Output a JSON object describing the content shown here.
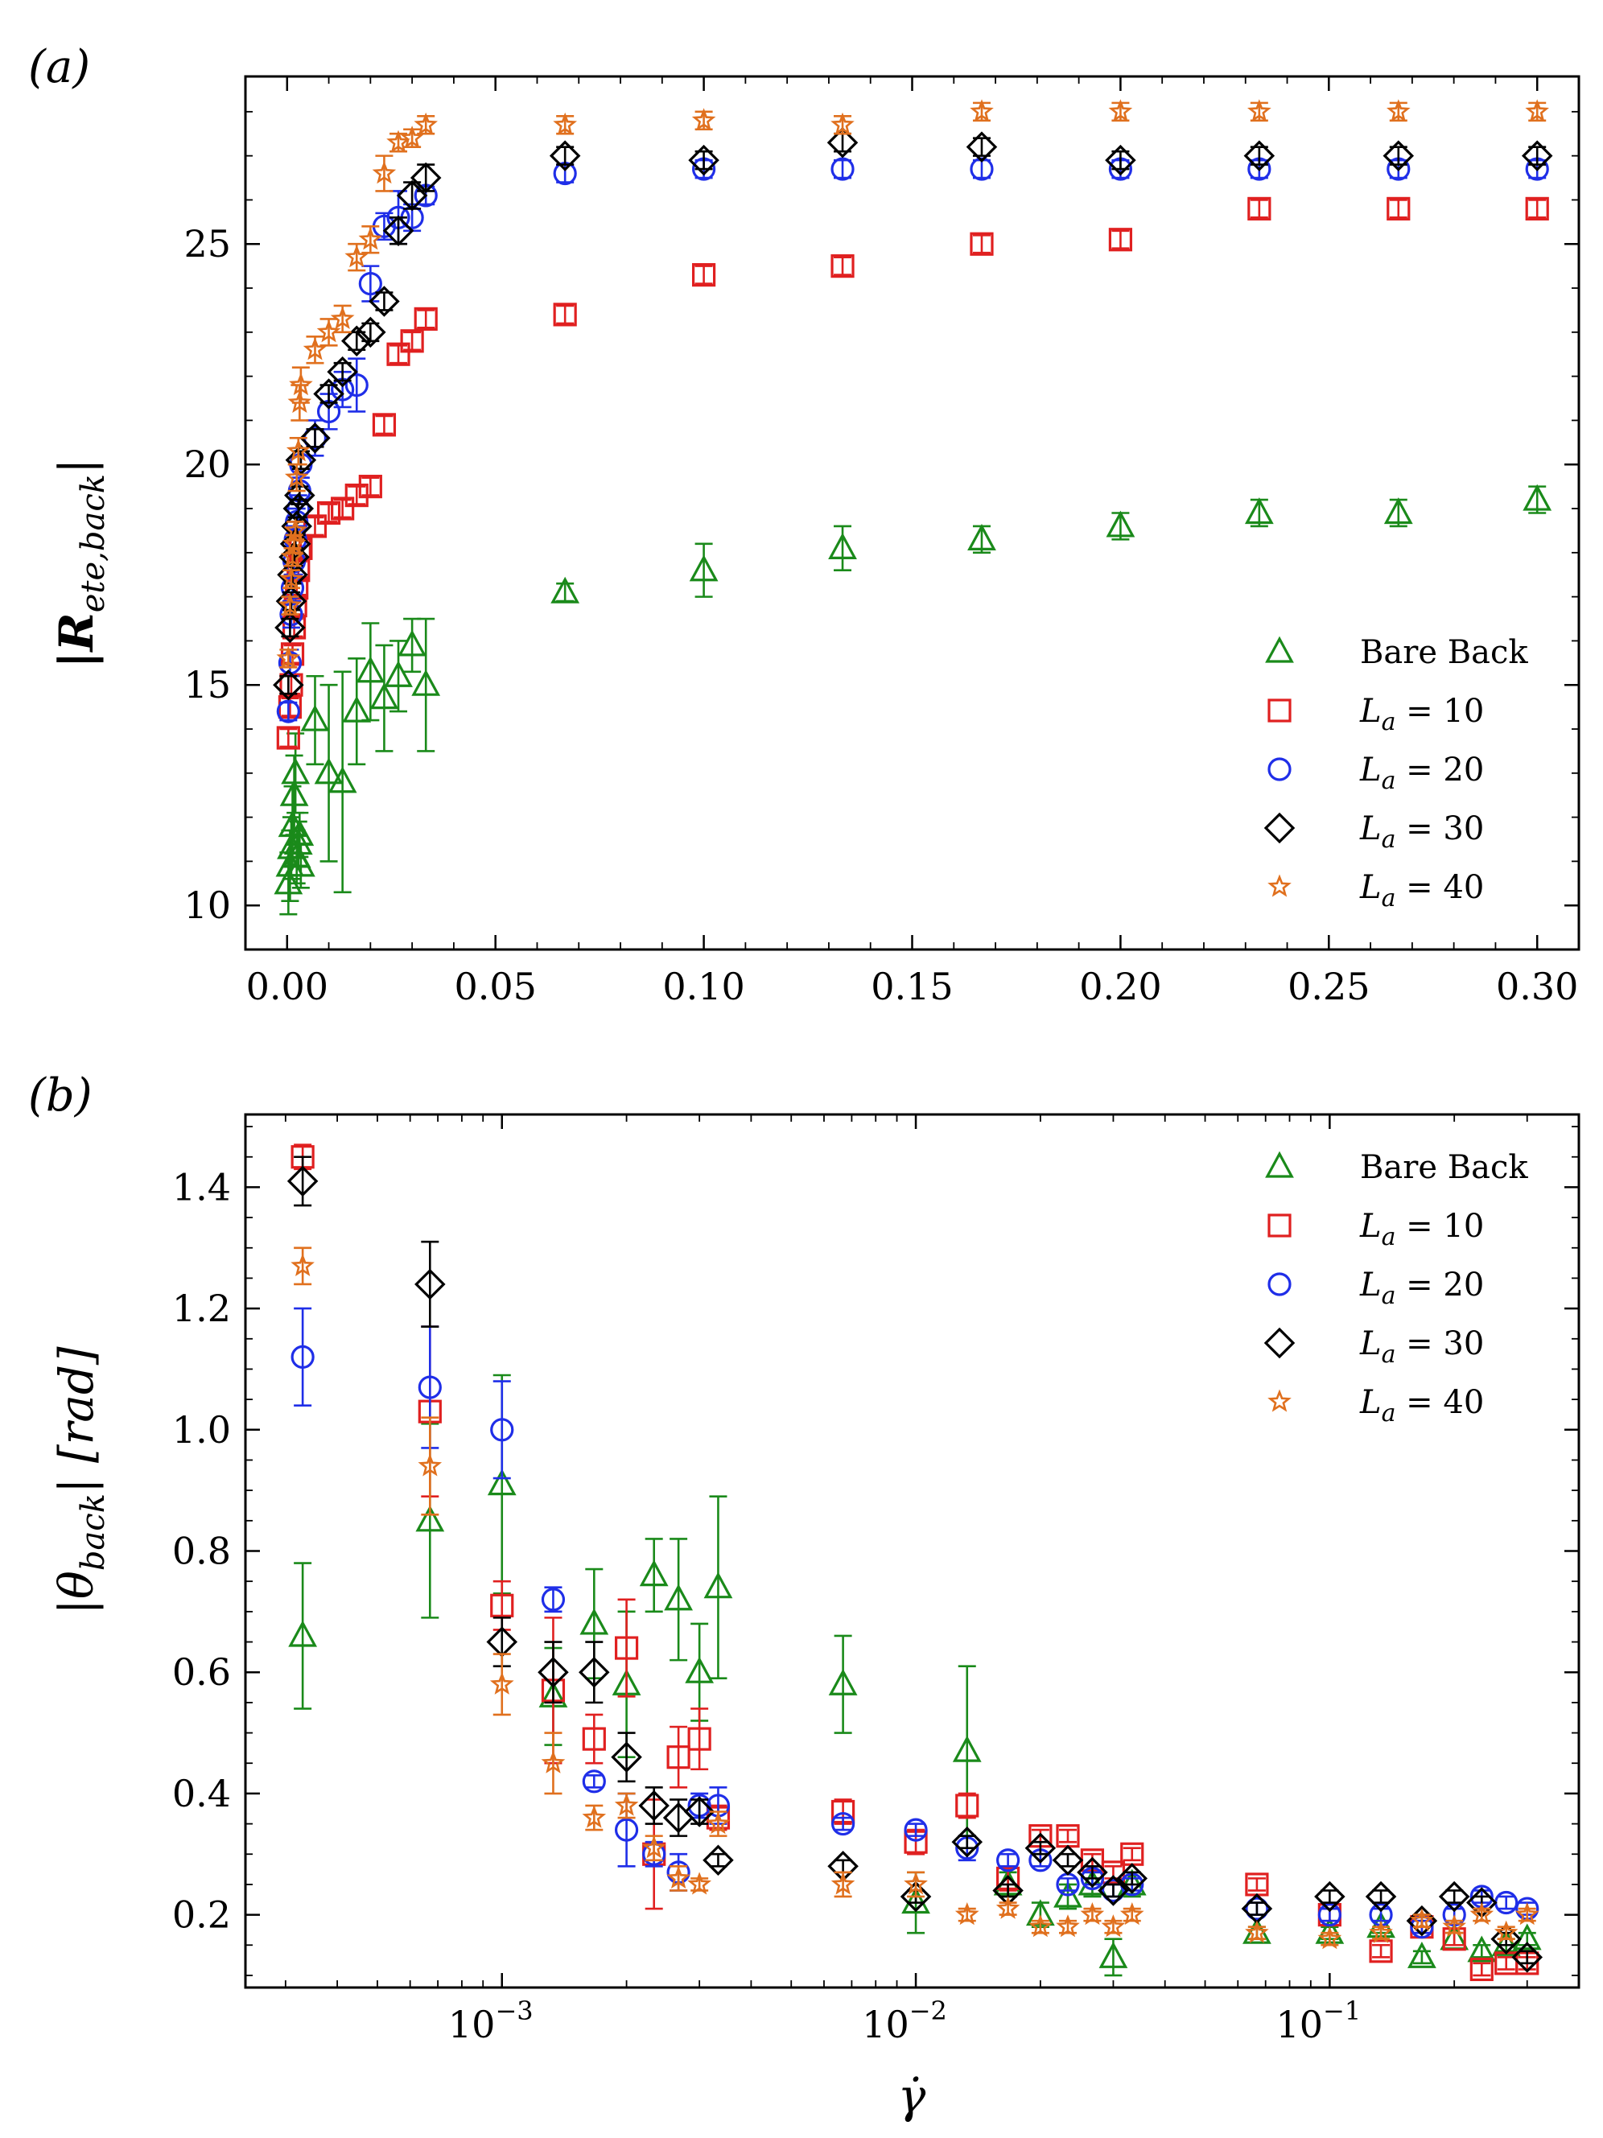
{
  "figure": {
    "colors": {
      "bare": "#1a8a1a",
      "la10": "#e02020",
      "la20": "#1f2ee8",
      "la30": "#000000",
      "la40": "#e0701e"
    }
  },
  "chart_data": [
    {
      "panel_label": "(a)",
      "type": "scatter",
      "xlabel": "",
      "ylabel": "|R_ete,back|",
      "ylabel_main": "|R",
      "ylabel_sub": "ete,back",
      "ylabel_close": "|",
      "xscale": "linear",
      "xlim": [
        -0.01,
        0.31
      ],
      "ylim": [
        9.0,
        28.8
      ],
      "xticks": [
        0.0,
        0.05,
        0.1,
        0.15,
        0.2,
        0.25,
        0.3
      ],
      "xtick_labels": [
        "0.00",
        "0.05",
        "0.10",
        "0.15",
        "0.20",
        "0.25",
        "0.30"
      ],
      "yticks": [
        10,
        15,
        20,
        25
      ],
      "ytick_labels": [
        "10",
        "15",
        "20",
        "25"
      ],
      "legend_position": "lower-right",
      "series": [
        {
          "key": "bare",
          "name": "Bare Back",
          "marker": "triangle",
          "x": [
            0.0003,
            0.0007,
            0.001,
            0.0013,
            0.0017,
            0.002,
            0.0023,
            0.0027,
            0.003,
            0.0033,
            0.0067,
            0.01,
            0.0133,
            0.0167,
            0.02,
            0.0233,
            0.0267,
            0.03,
            0.0333,
            0.0667,
            0.1,
            0.1333,
            0.1667,
            0.2,
            0.2333,
            0.2667,
            0.3
          ],
          "y": [
            10.5,
            10.9,
            11.3,
            11.8,
            12.5,
            13.0,
            11.1,
            11.4,
            11.6,
            10.9,
            14.2,
            13.0,
            12.8,
            14.4,
            15.3,
            14.7,
            15.2,
            15.9,
            15.0,
            17.1,
            17.6,
            18.1,
            18.3,
            18.6,
            18.9,
            18.9,
            19.2
          ],
          "yerr": [
            0.7,
            0.8,
            0.7,
            0.9,
            0.9,
            0.9,
            0.6,
            0.5,
            0.5,
            0.5,
            1.0,
            2.0,
            2.5,
            1.2,
            1.1,
            1.2,
            0.8,
            0.6,
            1.5,
            0.2,
            0.6,
            0.5,
            0.3,
            0.3,
            0.3,
            0.3,
            0.3
          ]
        },
        {
          "key": "la10",
          "name": "L_a = 10",
          "marker": "square",
          "x": [
            0.0003,
            0.0007,
            0.001,
            0.0013,
            0.0017,
            0.002,
            0.0023,
            0.0027,
            0.003,
            0.0033,
            0.0067,
            0.01,
            0.0133,
            0.0167,
            0.02,
            0.0233,
            0.0267,
            0.03,
            0.0333,
            0.0667,
            0.1,
            0.1333,
            0.1667,
            0.2,
            0.2333,
            0.2667,
            0.3
          ],
          "y": [
            13.8,
            14.5,
            15.0,
            15.7,
            16.3,
            16.8,
            17.2,
            17.6,
            18.1,
            18.1,
            18.6,
            18.9,
            19.0,
            19.3,
            19.5,
            20.9,
            22.5,
            22.8,
            23.3,
            23.4,
            24.3,
            24.5,
            25.0,
            25.1,
            25.8,
            25.8,
            25.8
          ],
          "yerr": [
            0.2,
            0.2,
            0.2,
            0.2,
            0.2,
            0.2,
            0.2,
            0.2,
            0.2,
            0.2,
            0.2,
            0.2,
            0.2,
            0.2,
            0.2,
            0.2,
            0.2,
            0.2,
            0.2,
            0.2,
            0.2,
            0.2,
            0.2,
            0.2,
            0.2,
            0.2,
            0.2
          ]
        },
        {
          "key": "la20",
          "name": "L_a = 20",
          "marker": "circle",
          "x": [
            0.0003,
            0.0007,
            0.001,
            0.0013,
            0.0017,
            0.002,
            0.0023,
            0.0027,
            0.003,
            0.0033,
            0.0067,
            0.01,
            0.0133,
            0.0167,
            0.02,
            0.0233,
            0.0267,
            0.03,
            0.0333,
            0.0667,
            0.1,
            0.1333,
            0.1667,
            0.2,
            0.2333,
            0.2667,
            0.3
          ],
          "y": [
            14.4,
            15.5,
            16.6,
            17.2,
            17.8,
            18.3,
            18.7,
            19.0,
            19.4,
            20.0,
            20.6,
            21.2,
            21.7,
            21.8,
            24.1,
            25.4,
            25.6,
            25.6,
            26.1,
            26.6,
            26.7,
            26.7,
            26.7,
            26.7,
            26.7,
            26.7,
            26.7
          ],
          "yerr": [
            0.2,
            0.3,
            0.3,
            0.3,
            0.3,
            0.3,
            0.3,
            0.3,
            0.3,
            0.3,
            0.4,
            0.4,
            0.4,
            0.6,
            0.4,
            0.3,
            0.6,
            0.3,
            0.2,
            0.2,
            0.2,
            0.2,
            0.2,
            0.2,
            0.2,
            0.2,
            0.2
          ]
        },
        {
          "key": "la30",
          "name": "L_a = 30",
          "marker": "diamond",
          "x": [
            0.0003,
            0.0007,
            0.001,
            0.0013,
            0.0017,
            0.002,
            0.0023,
            0.0027,
            0.003,
            0.0033,
            0.0067,
            0.01,
            0.0133,
            0.0167,
            0.02,
            0.0233,
            0.0267,
            0.03,
            0.0333,
            0.0667,
            0.1,
            0.1333,
            0.1667,
            0.2,
            0.2333,
            0.2667,
            0.3
          ],
          "y": [
            15.0,
            16.3,
            16.9,
            17.5,
            17.9,
            18.2,
            18.6,
            19.0,
            19.3,
            20.1,
            20.6,
            21.6,
            22.1,
            22.8,
            23.0,
            23.7,
            25.3,
            26.1,
            26.5,
            27.0,
            26.9,
            27.3,
            27.2,
            26.9,
            27.0,
            27.0,
            27.0
          ],
          "yerr": [
            0.2,
            0.2,
            0.2,
            0.2,
            0.2,
            0.2,
            0.2,
            0.2,
            0.2,
            0.2,
            0.2,
            0.2,
            0.2,
            0.2,
            0.2,
            0.2,
            0.3,
            0.3,
            0.3,
            0.2,
            0.2,
            0.2,
            0.2,
            0.2,
            0.2,
            0.2,
            0.2
          ]
        },
        {
          "key": "la40",
          "name": "L_a = 40",
          "marker": "star",
          "x": [
            0.0003,
            0.0007,
            0.001,
            0.0013,
            0.0017,
            0.002,
            0.0023,
            0.0027,
            0.003,
            0.0033,
            0.0067,
            0.01,
            0.0133,
            0.0167,
            0.02,
            0.0233,
            0.0267,
            0.03,
            0.0333,
            0.0667,
            0.1,
            0.1333,
            0.1667,
            0.2,
            0.2333,
            0.2667,
            0.3
          ],
          "y": [
            15.6,
            16.8,
            17.4,
            17.9,
            18.2,
            18.5,
            19.7,
            20.3,
            21.4,
            21.8,
            22.6,
            23.0,
            23.3,
            24.7,
            25.1,
            26.6,
            27.3,
            27.4,
            27.7,
            27.7,
            27.8,
            27.7,
            28.0,
            28.0,
            28.0,
            28.0,
            28.0
          ],
          "yerr": [
            0.2,
            0.2,
            0.2,
            0.2,
            0.2,
            0.2,
            0.3,
            0.3,
            0.4,
            0.4,
            0.3,
            0.3,
            0.3,
            0.3,
            0.3,
            0.4,
            0.2,
            0.2,
            0.2,
            0.2,
            0.2,
            0.2,
            0.2,
            0.2,
            0.2,
            0.2,
            0.2
          ]
        }
      ]
    },
    {
      "panel_label": "(b)",
      "type": "scatter",
      "xlabel": "γ̇",
      "ylabel": "|θ_back| [rad]",
      "ylabel_main": "|θ",
      "ylabel_sub": "back",
      "ylabel_close": "| [rad]",
      "xscale": "log",
      "xlim": [
        0.00024,
        0.4
      ],
      "ylim": [
        0.08,
        1.52
      ],
      "xticks": [
        0.001,
        0.01,
        0.1
      ],
      "xtick_labels": [
        "10",
        "10",
        "10"
      ],
      "xtick_exponents": [
        "−3",
        "−2",
        "−1"
      ],
      "yticks": [
        0.2,
        0.4,
        0.6,
        0.8,
        1.0,
        1.2,
        1.4
      ],
      "ytick_labels": [
        "0.2",
        "0.4",
        "0.6",
        "0.8",
        "1.0",
        "1.2",
        "1.4"
      ],
      "legend_position": "top-right",
      "series": [
        {
          "key": "bare",
          "name": "Bare Back",
          "marker": "triangle",
          "x": [
            0.00033,
            0.00067,
            0.001,
            0.00133,
            0.00167,
            0.002,
            0.00233,
            0.00267,
            0.003,
            0.00333,
            0.00667,
            0.01,
            0.0133,
            0.0167,
            0.02,
            0.0233,
            0.0267,
            0.03,
            0.0333,
            0.0667,
            0.1,
            0.133,
            0.167,
            0.2,
            0.233,
            0.267,
            0.3
          ],
          "y": [
            0.66,
            0.85,
            0.91,
            0.56,
            0.68,
            0.58,
            0.76,
            0.72,
            0.6,
            0.74,
            0.58,
            0.22,
            0.47,
            0.25,
            0.2,
            0.23,
            0.25,
            0.13,
            0.25,
            0.17,
            0.17,
            0.18,
            0.13,
            0.16,
            0.14,
            0.15,
            0.16
          ],
          "yerr": [
            0.12,
            0.16,
            0.18,
            0.08,
            0.09,
            0.12,
            0.06,
            0.1,
            0.08,
            0.15,
            0.08,
            0.05,
            0.14,
            0.02,
            0.02,
            0.02,
            0.02,
            0.03,
            0.02,
            0.01,
            0.01,
            0.01,
            0.01,
            0.01,
            0.01,
            0.01,
            0.01
          ]
        },
        {
          "key": "la10",
          "name": "L_a = 10",
          "marker": "square",
          "x": [
            0.00033,
            0.00067,
            0.001,
            0.00133,
            0.00167,
            0.002,
            0.00233,
            0.00267,
            0.003,
            0.00333,
            0.00667,
            0.01,
            0.0133,
            0.0167,
            0.02,
            0.0233,
            0.0267,
            0.03,
            0.0333,
            0.0667,
            0.1,
            0.133,
            0.167,
            0.2,
            0.233,
            0.267,
            0.3
          ],
          "y": [
            1.45,
            1.03,
            0.71,
            0.57,
            0.49,
            0.64,
            0.3,
            0.46,
            0.49,
            0.36,
            0.37,
            0.32,
            0.38,
            0.26,
            0.33,
            0.33,
            0.29,
            0.27,
            0.3,
            0.25,
            0.2,
            0.14,
            0.18,
            0.16,
            0.11,
            0.12,
            0.12
          ],
          "yerr": [
            0.02,
            0.14,
            0.04,
            0.12,
            0.04,
            0.08,
            0.09,
            0.05,
            0.05,
            0.02,
            0.02,
            0.02,
            0.02,
            0.02,
            0.01,
            0.01,
            0.01,
            0.01,
            0.01,
            0.01,
            0.01,
            0.01,
            0.01,
            0.01,
            0.01,
            0.01,
            0.01
          ]
        },
        {
          "key": "la20",
          "name": "L_a = 20",
          "marker": "circle",
          "x": [
            0.00033,
            0.00067,
            0.001,
            0.00133,
            0.00167,
            0.002,
            0.00233,
            0.00267,
            0.003,
            0.00333,
            0.00667,
            0.01,
            0.0133,
            0.0167,
            0.02,
            0.0233,
            0.0267,
            0.03,
            0.0333,
            0.0667,
            0.1,
            0.133,
            0.167,
            0.2,
            0.233,
            0.267,
            0.3
          ],
          "y": [
            1.12,
            1.07,
            1.0,
            0.72,
            0.42,
            0.34,
            0.3,
            0.27,
            0.38,
            0.38,
            0.35,
            0.34,
            0.31,
            0.29,
            0.29,
            0.25,
            0.26,
            0.24,
            0.25,
            0.21,
            0.2,
            0.2,
            0.18,
            0.2,
            0.23,
            0.22,
            0.21
          ],
          "yerr": [
            0.08,
            0.1,
            0.08,
            0.02,
            0.01,
            0.06,
            0.02,
            0.03,
            0.02,
            0.03,
            0.01,
            0.01,
            0.02,
            0.01,
            0.01,
            0.01,
            0.01,
            0.01,
            0.01,
            0.01,
            0.01,
            0.01,
            0.01,
            0.01,
            0.01,
            0.01,
            0.01
          ]
        },
        {
          "key": "la30",
          "name": "L_a = 30",
          "marker": "diamond",
          "x": [
            0.00033,
            0.00067,
            0.001,
            0.00133,
            0.00167,
            0.002,
            0.00233,
            0.00267,
            0.003,
            0.00333,
            0.00667,
            0.01,
            0.0133,
            0.0167,
            0.02,
            0.0233,
            0.0267,
            0.03,
            0.0333,
            0.0667,
            0.1,
            0.133,
            0.167,
            0.2,
            0.233,
            0.267,
            0.3
          ],
          "y": [
            1.41,
            1.24,
            0.65,
            0.6,
            0.6,
            0.46,
            0.38,
            0.36,
            0.37,
            0.29,
            0.28,
            0.23,
            0.32,
            0.24,
            0.31,
            0.29,
            0.27,
            0.24,
            0.26,
            0.21,
            0.23,
            0.23,
            0.19,
            0.23,
            0.22,
            0.16,
            0.13
          ],
          "yerr": [
            0.04,
            0.07,
            0.04,
            0.05,
            0.05,
            0.04,
            0.03,
            0.03,
            0.02,
            0.01,
            0.01,
            0.01,
            0.01,
            0.01,
            0.01,
            0.01,
            0.01,
            0.01,
            0.01,
            0.01,
            0.01,
            0.01,
            0.01,
            0.01,
            0.01,
            0.01,
            0.01
          ]
        },
        {
          "key": "la40",
          "name": "L_a = 40",
          "marker": "star",
          "x": [
            0.00033,
            0.00067,
            0.001,
            0.00133,
            0.00167,
            0.002,
            0.00233,
            0.00267,
            0.003,
            0.00333,
            0.00667,
            0.01,
            0.0133,
            0.0167,
            0.02,
            0.0233,
            0.0267,
            0.03,
            0.0333,
            0.0667,
            0.1,
            0.133,
            0.167,
            0.2,
            0.233,
            0.267,
            0.3
          ],
          "y": [
            1.27,
            0.94,
            0.58,
            0.45,
            0.36,
            0.38,
            0.31,
            0.26,
            0.25,
            0.35,
            0.25,
            0.25,
            0.2,
            0.21,
            0.18,
            0.18,
            0.2,
            0.18,
            0.2,
            0.17,
            0.16,
            0.17,
            0.19,
            0.18,
            0.2,
            0.17,
            0.2
          ],
          "yerr": [
            0.03,
            0.08,
            0.05,
            0.05,
            0.02,
            0.02,
            0.02,
            0.02,
            0.01,
            0.02,
            0.02,
            0.02,
            0.01,
            0.01,
            0.01,
            0.01,
            0.01,
            0.01,
            0.01,
            0.01,
            0.01,
            0.01,
            0.01,
            0.01,
            0.01,
            0.01,
            0.01
          ]
        }
      ]
    }
  ]
}
